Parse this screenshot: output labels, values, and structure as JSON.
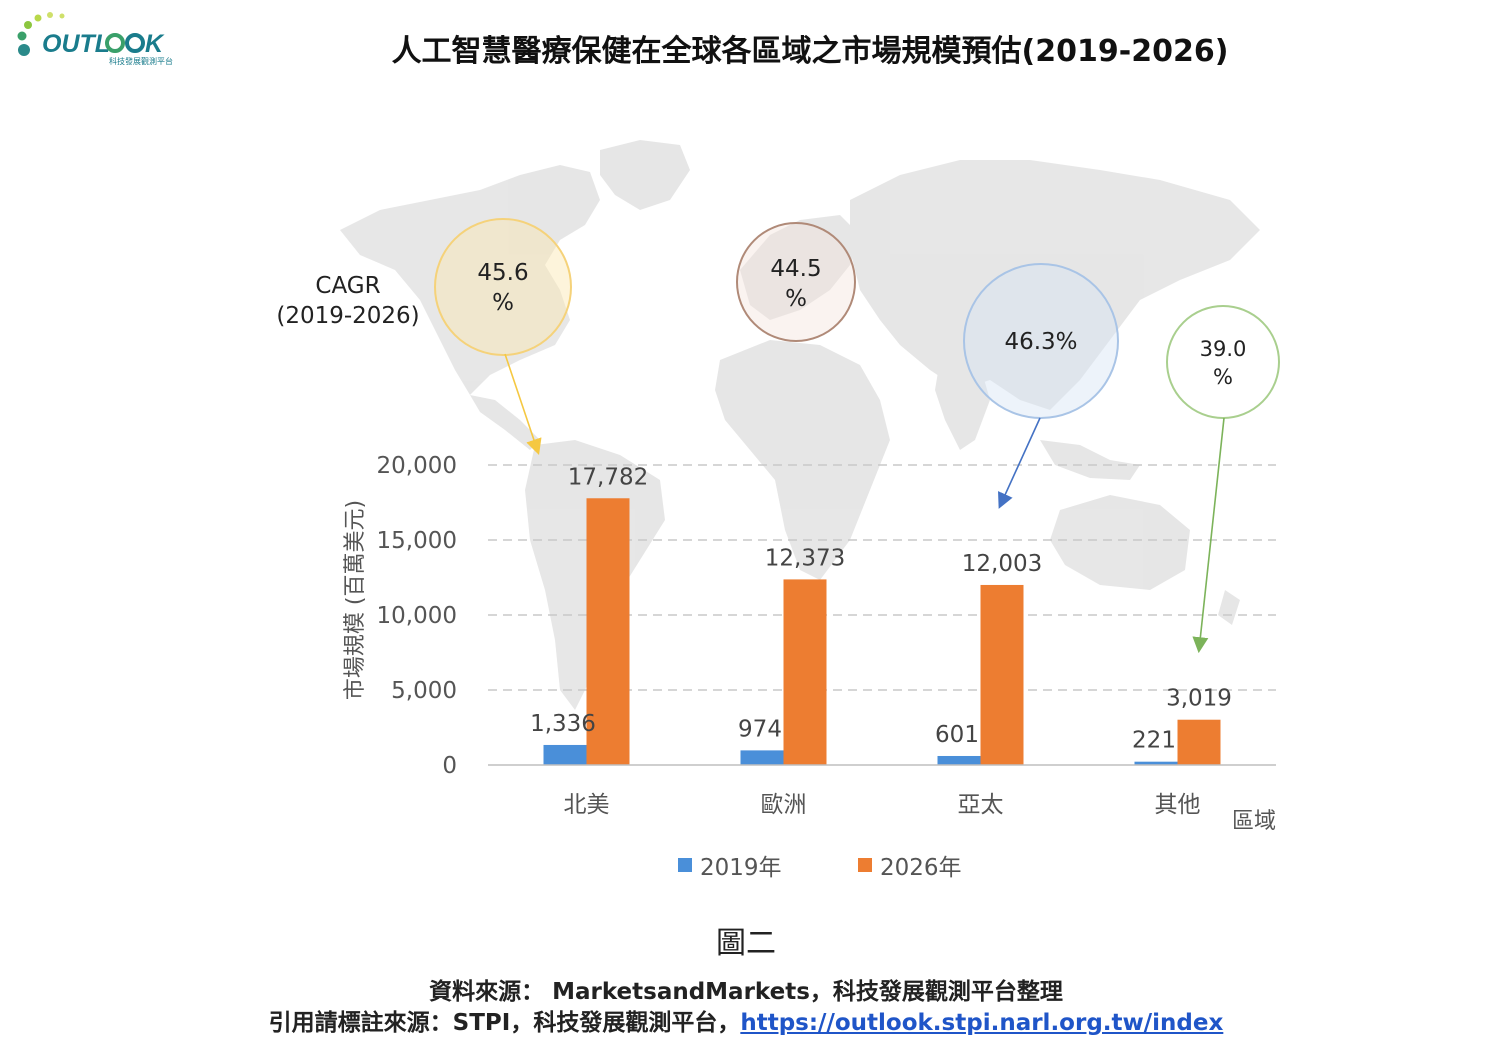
{
  "logo": {
    "text": "OUTLOOK",
    "subtitle": "科技發展觀測平台"
  },
  "title": "人工智慧醫療保健在全球各區域之市場規模預估(2019-2026)",
  "cagr_label": {
    "line1": "CAGR",
    "line2": "(2019-2026)"
  },
  "cagr": [
    {
      "region": "北美",
      "text1": "45.6",
      "text2": "%",
      "color": "#f5c842"
    },
    {
      "region": "歐洲",
      "text1": "44.5",
      "text2": "%",
      "color": "#b08a78"
    },
    {
      "region": "亞太",
      "text1": "46.3%",
      "text2": "",
      "color": "#5b8fd6"
    },
    {
      "region": "其他",
      "text1": "39.0",
      "text2": "%",
      "color": "#7cb35a"
    }
  ],
  "chart_data": {
    "type": "bar",
    "categories": [
      "北美",
      "歐洲",
      "亞太",
      "其他"
    ],
    "series": [
      {
        "name": "2019年",
        "values": [
          1336,
          974,
          601,
          221
        ],
        "labels": [
          "1,336",
          "974",
          "601",
          "221"
        ],
        "color": "#4a8fd9"
      },
      {
        "name": "2026年",
        "values": [
          17782,
          12373,
          12003,
          3019
        ],
        "labels": [
          "17,782",
          "12,373",
          "12,003",
          "3,019"
        ],
        "color": "#ed7d31"
      }
    ],
    "ylabel": "市場規模 (百萬美元)",
    "xlabel": "區域",
    "ylim": [
      0,
      20000
    ],
    "yticks": [
      0,
      5000,
      10000,
      15000,
      20000
    ],
    "ytick_labels": [
      "0",
      "5,000",
      "10,000",
      "15,000",
      "20,000"
    ],
    "grid": true,
    "legend_position": "bottom"
  },
  "figure_caption": "圖二",
  "source": "資料來源： MarketsandMarkets，科技發展觀測平台整理",
  "citation_prefix": "引用請標註來源：STPI，科技發展觀測平台，",
  "citation_link": "https://outlook.stpi.narl.org.tw/index"
}
